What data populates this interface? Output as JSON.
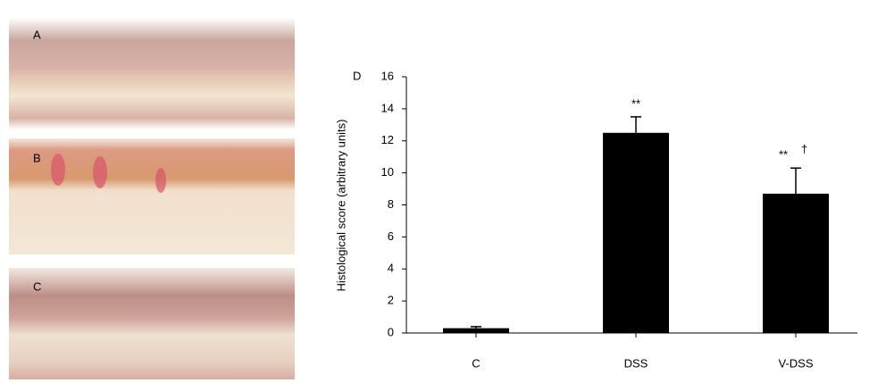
{
  "panels": [
    "A",
    "B",
    "C"
  ],
  "chart_data": {
    "type": "bar",
    "panel_label": "D",
    "ylabel": "Histological score (arbitrary units)",
    "categories": [
      "C",
      "DSS",
      "V-DSS"
    ],
    "values": [
      0.3,
      12.5,
      8.7
    ],
    "errors": [
      0.1,
      1.0,
      1.6
    ],
    "significance": [
      null,
      "**",
      "**"
    ],
    "vs_dss": [
      null,
      null,
      "†"
    ],
    "color": "#000000",
    "ylim": [
      0,
      16
    ],
    "yticks": [
      0,
      2,
      4,
      6,
      8,
      10,
      12,
      14,
      16
    ]
  }
}
